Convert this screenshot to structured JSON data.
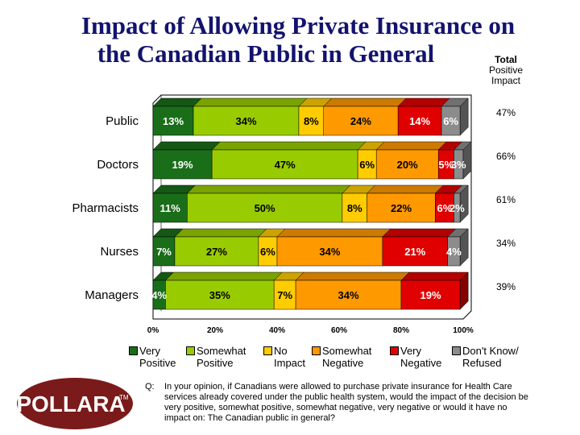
{
  "title_line1": "Impact of Allowing Private Insurance on",
  "title_line2": "the Canadian Public in General",
  "total_positive_header": [
    "Total",
    "Positive",
    "Impact"
  ],
  "question_prefix": "Q:",
  "question_text": "In your opinion, if Canadians were allowed to purchase private insurance for Health Care services already covered under the public health system, would the impact of the decision be very positive, somewhat positive, somewhat negative, very negative or would it have no impact on:  The Canadian public in general?",
  "logo_text": "POLLARA",
  "logo_mark": "TM",
  "colors": {
    "very_positive": "#1a6e1a",
    "somewhat_positive": "#99cc00",
    "no_impact": "#ffcc00",
    "somewhat_negative": "#ff9900",
    "very_negative": "#e00000",
    "dont_know": "#8c8c8c",
    "title": "#13136e",
    "logo": "#7a1a1a"
  },
  "legend": [
    {
      "key": "very_positive",
      "line1": "Very",
      "line2": "Positive"
    },
    {
      "key": "somewhat_positive",
      "line1": "Somewhat",
      "line2": "Positive"
    },
    {
      "key": "no_impact",
      "line1": "No",
      "line2": "Impact"
    },
    {
      "key": "somewhat_negative",
      "line1": "Somewhat",
      "line2": "Negative"
    },
    {
      "key": "very_negative",
      "line1": "Very",
      "line2": "Negative"
    },
    {
      "key": "dont_know",
      "line1": "Don't Know/",
      "line2": "Refused"
    }
  ],
  "chart_data": {
    "type": "bar",
    "orientation": "horizontal-stacked",
    "categories": [
      "Public",
      "Doctors",
      "Pharmacists",
      "Nurses",
      "Managers"
    ],
    "series": [
      {
        "name": "Very Positive",
        "key": "very_positive",
        "values": [
          13,
          19,
          11,
          7,
          4
        ]
      },
      {
        "name": "Somewhat Positive",
        "key": "somewhat_positive",
        "values": [
          34,
          47,
          50,
          27,
          35
        ]
      },
      {
        "name": "No Impact",
        "key": "no_impact",
        "values": [
          8,
          6,
          8,
          6,
          7
        ]
      },
      {
        "name": "Somewhat Negative",
        "key": "somewhat_negative",
        "values": [
          24,
          20,
          22,
          34,
          34
        ]
      },
      {
        "name": "Very Negative",
        "key": "very_negative",
        "values": [
          14,
          5,
          6,
          21,
          19
        ]
      },
      {
        "name": "Don't Know/ Refused",
        "key": "dont_know",
        "values": [
          6,
          3,
          2,
          4,
          0
        ]
      }
    ],
    "total_positive": [
      "47%",
      "66%",
      "61%",
      "34%",
      "39%"
    ],
    "xticks": [
      "0%",
      "20%",
      "40%",
      "60%",
      "80%",
      "100%"
    ],
    "xlim": [
      0,
      100
    ],
    "legend_position": "bottom"
  }
}
